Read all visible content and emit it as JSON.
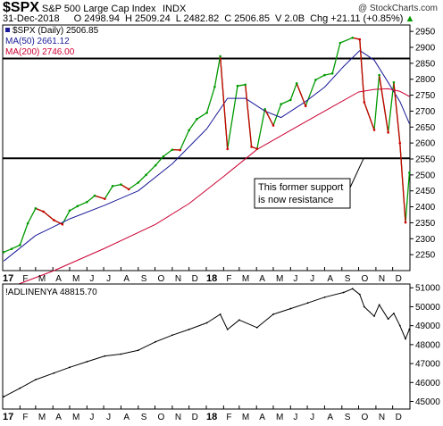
{
  "header": {
    "symbol": "$SPX",
    "name": "S&P 500 Large Cap Index",
    "exchange": "INDX",
    "watermark": "@ StockCharts.com",
    "date": "31-Dec-2018",
    "open": "O 2498.94",
    "high": "H 2509.24",
    "low": "L 2482.82",
    "close": "C 2506.85",
    "volume": "V 2.0B",
    "change": "Chg +21.11 (+0.85%)",
    "change_arrow": "▲"
  },
  "colors": {
    "price_up": "#009900",
    "price_down": "#cc0000",
    "ma50": "#1a1a99",
    "ma200": "#cc0033",
    "change_up": "#009900",
    "adline": "#000000",
    "legend_box": "#1a1a99"
  },
  "chart_data": [
    {
      "type": "line",
      "title": "$SPX (Daily) 2506.85",
      "series": [
        {
          "name": "$SPX (Daily) 2506.85",
          "x": [
            "2017-01-03",
            "2017-01-17",
            "2017-02-01",
            "2017-02-15",
            "2017-03-01",
            "2017-03-15",
            "2017-04-03",
            "2017-04-18",
            "2017-05-01",
            "2017-05-15",
            "2017-06-01",
            "2017-06-15",
            "2017-07-03",
            "2017-07-17",
            "2017-08-01",
            "2017-08-15",
            "2017-09-01",
            "2017-09-15",
            "2017-10-02",
            "2017-10-16",
            "2017-11-01",
            "2017-11-15",
            "2017-12-01",
            "2017-12-15",
            "2018-01-02",
            "2018-01-16",
            "2018-01-26",
            "2018-02-08",
            "2018-02-26",
            "2018-03-12",
            "2018-03-23",
            "2018-04-02",
            "2018-04-16",
            "2018-05-01",
            "2018-05-15",
            "2018-06-01",
            "2018-06-12",
            "2018-06-28",
            "2018-07-16",
            "2018-08-01",
            "2018-08-15",
            "2018-08-29",
            "2018-09-20",
            "2018-10-03",
            "2018-10-11",
            "2018-10-29",
            "2018-11-07",
            "2018-11-23",
            "2018-12-03",
            "2018-12-14",
            "2018-12-24",
            "2018-12-31"
          ],
          "y": [
            2258,
            2268,
            2280,
            2348,
            2395,
            2385,
            2358,
            2345,
            2388,
            2402,
            2415,
            2435,
            2425,
            2465,
            2470,
            2455,
            2476,
            2500,
            2530,
            2558,
            2579,
            2578,
            2640,
            2675,
            2695,
            2776,
            2872,
            2581,
            2779,
            2783,
            2588,
            2582,
            2706,
            2655,
            2722,
            2735,
            2787,
            2716,
            2798,
            2813,
            2818,
            2914,
            2930,
            2925,
            2728,
            2641,
            2813,
            2633,
            2790,
            2600,
            2351,
            2507
          ]
        },
        {
          "name": "MA(50) 2661.12",
          "x": [
            "2017-01-03",
            "2017-03-01",
            "2017-05-01",
            "2017-07-03",
            "2017-09-01",
            "2017-11-01",
            "2018-01-02",
            "2018-02-08",
            "2018-03-12",
            "2018-04-16",
            "2018-05-15",
            "2018-06-28",
            "2018-08-01",
            "2018-09-04",
            "2018-10-03",
            "2018-10-29",
            "2018-11-23",
            "2018-12-14",
            "2018-12-31"
          ],
          "y": [
            2230,
            2310,
            2362,
            2405,
            2450,
            2535,
            2645,
            2740,
            2740,
            2700,
            2680,
            2730,
            2775,
            2840,
            2890,
            2860,
            2790,
            2730,
            2661
          ]
        },
        {
          "name": "MA(200) 2746.00",
          "x": [
            "2017-01-03",
            "2017-04-03",
            "2017-07-03",
            "2017-10-02",
            "2017-12-01",
            "2018-02-01",
            "2018-04-02",
            "2018-06-01",
            "2018-08-01",
            "2018-10-01",
            "2018-10-29",
            "2018-11-23",
            "2018-12-14",
            "2018-12-31"
          ],
          "y": [
            2140,
            2200,
            2270,
            2345,
            2410,
            2495,
            2580,
            2640,
            2700,
            2760,
            2768,
            2770,
            2762,
            2746
          ]
        }
      ],
      "yticks": [
        2250,
        2300,
        2350,
        2400,
        2450,
        2500,
        2550,
        2600,
        2650,
        2700,
        2750,
        2800,
        2850,
        2900,
        2950
      ],
      "ylim": [
        2200,
        2970
      ],
      "hlines": [
        2865,
        2552
      ],
      "annotation": {
        "line1": "This former support",
        "line2": "is now resistance"
      }
    },
    {
      "type": "line",
      "title": "!ADLINENYA 48815.70",
      "series": [
        {
          "name": "!ADLINENYA 48815.70",
          "x": [
            "2017-01-03",
            "2017-02-01",
            "2017-03-01",
            "2017-04-03",
            "2017-05-01",
            "2017-06-01",
            "2017-07-03",
            "2017-08-01",
            "2017-09-01",
            "2017-10-02",
            "2017-11-01",
            "2017-12-01",
            "2018-01-02",
            "2018-01-26",
            "2018-02-08",
            "2018-03-01",
            "2018-04-02",
            "2018-05-01",
            "2018-06-01",
            "2018-07-02",
            "2018-08-01",
            "2018-09-04",
            "2018-09-20",
            "2018-10-03",
            "2018-10-11",
            "2018-10-29",
            "2018-11-07",
            "2018-11-23",
            "2018-12-03",
            "2018-12-14",
            "2018-12-24",
            "2018-12-31"
          ],
          "y": [
            45250,
            45700,
            46150,
            46500,
            46800,
            47100,
            47400,
            47500,
            47700,
            48150,
            48500,
            48800,
            49150,
            49600,
            48800,
            49300,
            48900,
            49600,
            49900,
            50200,
            50500,
            50750,
            50950,
            50650,
            50000,
            49500,
            50100,
            49350,
            49650,
            49000,
            48300,
            48815.7
          ]
        }
      ],
      "yticks": [
        45000,
        46000,
        47000,
        48000,
        49000,
        50000,
        51000
      ],
      "ylim": [
        44600,
        51200
      ]
    }
  ],
  "axis": {
    "labels": [
      {
        "text": "17",
        "date": "2017-01-01",
        "year": true
      },
      {
        "text": "F",
        "date": "2017-02-01"
      },
      {
        "text": "M",
        "date": "2017-03-01"
      },
      {
        "text": "A",
        "date": "2017-04-01"
      },
      {
        "text": "M",
        "date": "2017-05-01"
      },
      {
        "text": "J",
        "date": "2017-06-01"
      },
      {
        "text": "J",
        "date": "2017-07-01"
      },
      {
        "text": "A",
        "date": "2017-08-01"
      },
      {
        "text": "S",
        "date": "2017-09-01"
      },
      {
        "text": "O",
        "date": "2017-10-01"
      },
      {
        "text": "N",
        "date": "2017-11-01"
      },
      {
        "text": "D",
        "date": "2017-12-01"
      },
      {
        "text": "18",
        "date": "2018-01-01",
        "year": true
      },
      {
        "text": "F",
        "date": "2018-02-01"
      },
      {
        "text": "M",
        "date": "2018-03-01"
      },
      {
        "text": "A",
        "date": "2018-04-01"
      },
      {
        "text": "M",
        "date": "2018-05-01"
      },
      {
        "text": "J",
        "date": "2018-06-01"
      },
      {
        "text": "J",
        "date": "2018-07-01"
      },
      {
        "text": "A",
        "date": "2018-08-01"
      },
      {
        "text": "S",
        "date": "2018-09-01"
      },
      {
        "text": "O",
        "date": "2018-10-01"
      },
      {
        "text": "N",
        "date": "2018-11-01"
      },
      {
        "text": "D",
        "date": "2018-12-01"
      }
    ]
  }
}
